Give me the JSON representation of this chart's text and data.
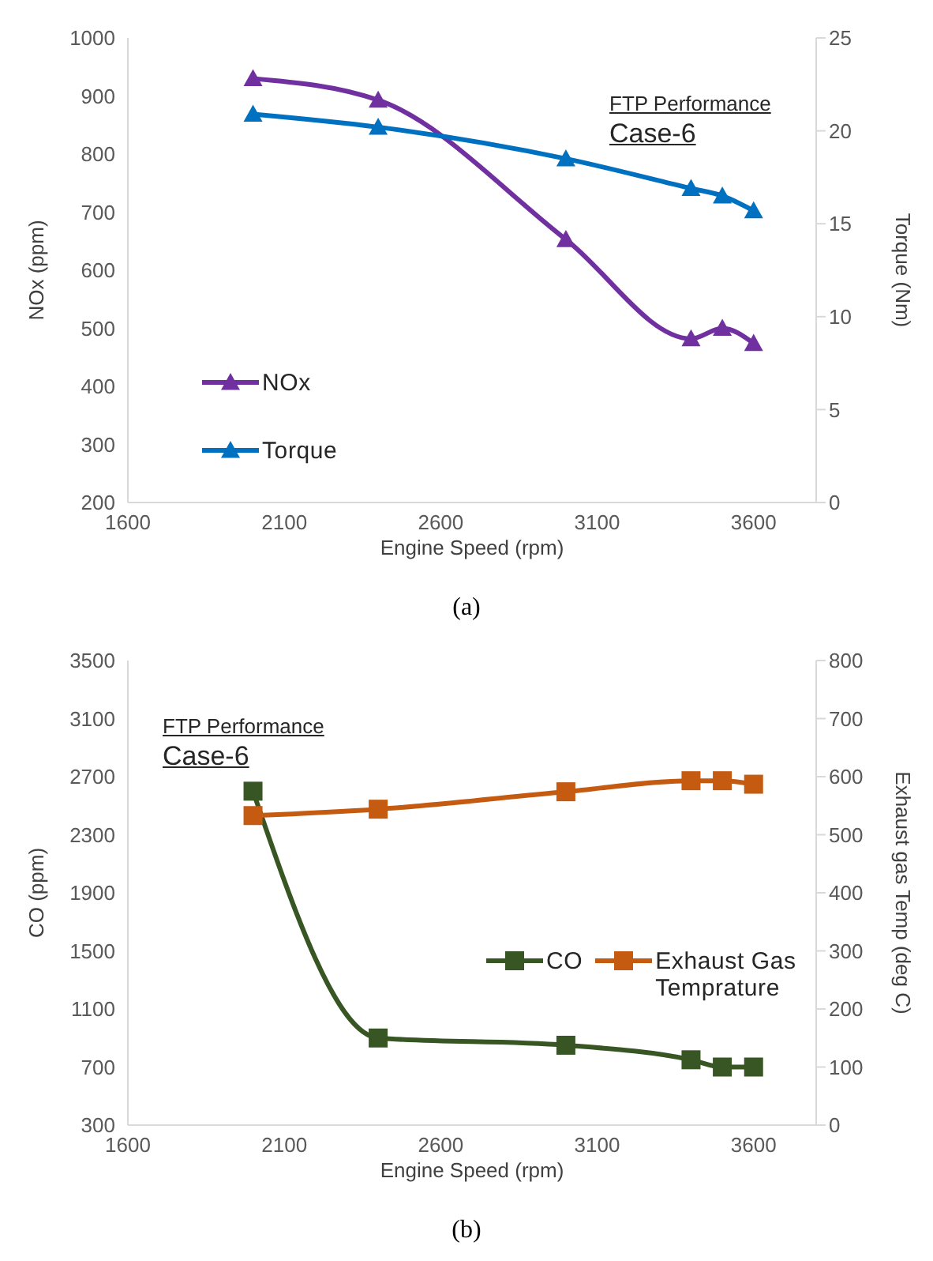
{
  "chart_data": [
    {
      "type": "line",
      "xlabel": "Engine Speed (rpm)",
      "ylabel": "NOx (ppm)",
      "y2label": "Torque (Nm)",
      "annotations": [
        "FTP Performance",
        "Case-6",
        "(a)"
      ],
      "x": [
        2000,
        2400,
        3000,
        3400,
        3500,
        3600
      ],
      "xlim": [
        1600,
        3800
      ],
      "xticks": [
        1600,
        2100,
        2600,
        3100,
        3600
      ],
      "ylim": [
        200,
        1000
      ],
      "yticks": [
        200,
        300,
        400,
        500,
        600,
        700,
        800,
        900,
        1000
      ],
      "y2lim": [
        0,
        25
      ],
      "y2ticks": [
        0,
        5,
        10,
        15,
        20,
        25
      ],
      "marker": "triangle",
      "legend": "left",
      "series": [
        {
          "name": "NOx",
          "color": "#7030a0",
          "values": [
            930,
            893,
            653,
            482,
            500,
            474
          ]
        },
        {
          "name": "Torque",
          "color": "#0070c0",
          "axis": "y2",
          "values": [
            20.9,
            20.2,
            18.5,
            16.9,
            16.5,
            15.7
          ]
        }
      ]
    },
    {
      "type": "line",
      "xlabel": "Engine Speed (rpm)",
      "ylabel": "CO (ppm)",
      "y2label": "Exhaust gas Temp (deg C)",
      "annotations": [
        "FTP Performance",
        "Case-6",
        "(b)"
      ],
      "x": [
        2000,
        2400,
        3000,
        3400,
        3500,
        3600
      ],
      "xlim": [
        1600,
        3800
      ],
      "xticks": [
        1600,
        2100,
        2600,
        3100,
        3600
      ],
      "ylim": [
        300,
        3500
      ],
      "yticks": [
        300,
        700,
        1100,
        1500,
        1900,
        2300,
        2700,
        3100,
        3500
      ],
      "y2lim": [
        0,
        800
      ],
      "y2ticks": [
        0,
        100,
        200,
        300,
        400,
        500,
        600,
        700,
        800
      ],
      "marker": "square",
      "legend": "right",
      "series": [
        {
          "name": "CO",
          "color": "#375623",
          "values": [
            2600,
            900,
            850,
            750,
            700,
            700
          ]
        },
        {
          "name": "Exhaust Gas Temprature",
          "color": "#c55a11",
          "axis": "y2",
          "values": [
            533,
            544,
            574,
            593,
            593,
            587
          ]
        }
      ]
    }
  ]
}
